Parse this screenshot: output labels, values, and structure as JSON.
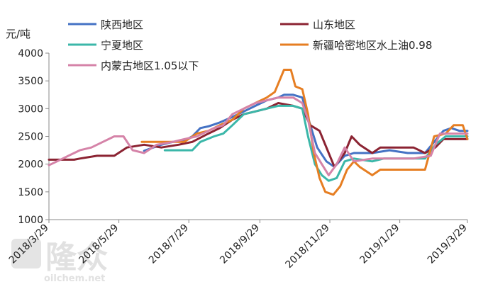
{
  "chart_data": {
    "type": "line",
    "ylabel": "元/吨",
    "ylim": [
      1000,
      4000
    ],
    "yticks": [
      "1000",
      "1500",
      "2000",
      "2500",
      "3000",
      "3500",
      "4000"
    ],
    "xlim": [
      "2018-03-29",
      "2019-03-29"
    ],
    "xticks": [
      "2018/3/29",
      "2018/5/29",
      "2018/7/29",
      "2018/9/29",
      "2018/11/29",
      "2019/1/29",
      "2019/3/29"
    ],
    "grid": false,
    "legend": "top",
    "series": [
      {
        "name": "陕西地区",
        "color": "#4472C4",
        "points": [
          [
            "2018-06-20",
            2240
          ],
          [
            "2018-06-28",
            2300
          ],
          [
            "2018-07-05",
            2350
          ],
          [
            "2018-07-15",
            2400
          ],
          [
            "2018-07-25",
            2420
          ],
          [
            "2018-08-01",
            2500
          ],
          [
            "2018-08-08",
            2650
          ],
          [
            "2018-08-15",
            2680
          ],
          [
            "2018-08-25",
            2750
          ],
          [
            "2018-09-05",
            2850
          ],
          [
            "2018-09-15",
            2950
          ],
          [
            "2018-09-25",
            3050
          ],
          [
            "2018-10-05",
            3150
          ],
          [
            "2018-10-15",
            3200
          ],
          [
            "2018-10-20",
            3250
          ],
          [
            "2018-10-28",
            3250
          ],
          [
            "2018-11-05",
            3200
          ],
          [
            "2018-11-12",
            2700
          ],
          [
            "2018-11-18",
            2300
          ],
          [
            "2018-11-26",
            2050
          ],
          [
            "2018-12-03",
            1950
          ],
          [
            "2018-12-12",
            2150
          ],
          [
            "2018-12-20",
            2200
          ],
          [
            "2019-01-05",
            2200
          ],
          [
            "2019-01-20",
            2250
          ],
          [
            "2019-02-05",
            2200
          ],
          [
            "2019-02-20",
            2200
          ],
          [
            "2019-02-28",
            2400
          ],
          [
            "2019-03-08",
            2600
          ],
          [
            "2019-03-15",
            2650
          ],
          [
            "2019-03-22",
            2600
          ],
          [
            "2019-03-29",
            2600
          ]
        ]
      },
      {
        "name": "山东地区",
        "color": "#8B2332",
        "points": [
          [
            "2018-03-29",
            2080
          ],
          [
            "2018-04-20",
            2080
          ],
          [
            "2018-04-25",
            2100
          ],
          [
            "2018-05-10",
            2150
          ],
          [
            "2018-05-25",
            2150
          ],
          [
            "2018-06-05",
            2300
          ],
          [
            "2018-06-20",
            2350
          ],
          [
            "2018-07-05",
            2300
          ],
          [
            "2018-07-20",
            2350
          ],
          [
            "2018-08-01",
            2400
          ],
          [
            "2018-08-15",
            2550
          ],
          [
            "2018-08-25",
            2650
          ],
          [
            "2018-09-05",
            2800
          ],
          [
            "2018-09-15",
            2900
          ],
          [
            "2018-09-25",
            2950
          ],
          [
            "2018-10-05",
            3000
          ],
          [
            "2018-10-15",
            3100
          ],
          [
            "2018-10-28",
            3050
          ],
          [
            "2018-11-05",
            3000
          ],
          [
            "2018-11-12",
            2700
          ],
          [
            "2018-11-20",
            2600
          ],
          [
            "2018-11-28",
            2200
          ],
          [
            "2018-12-03",
            1950
          ],
          [
            "2018-12-12",
            2200
          ],
          [
            "2018-12-18",
            2500
          ],
          [
            "2018-12-25",
            2350
          ],
          [
            "2019-01-05",
            2200
          ],
          [
            "2019-01-12",
            2300
          ],
          [
            "2019-01-25",
            2300
          ],
          [
            "2019-02-10",
            2300
          ],
          [
            "2019-02-20",
            2200
          ],
          [
            "2019-03-01",
            2300
          ],
          [
            "2019-03-08",
            2450
          ],
          [
            "2019-03-20",
            2450
          ],
          [
            "2019-03-29",
            2450
          ]
        ]
      },
      {
        "name": "宁夏地区",
        "color": "#3BB7A9",
        "points": [
          [
            "2018-07-08",
            2250
          ],
          [
            "2018-08-01",
            2250
          ],
          [
            "2018-08-08",
            2400
          ],
          [
            "2018-08-20",
            2500
          ],
          [
            "2018-08-28",
            2550
          ],
          [
            "2018-09-05",
            2700
          ],
          [
            "2018-09-15",
            2900
          ],
          [
            "2018-09-25",
            2950
          ],
          [
            "2018-10-05",
            3000
          ],
          [
            "2018-10-15",
            3050
          ],
          [
            "2018-10-28",
            3050
          ],
          [
            "2018-11-05",
            3000
          ],
          [
            "2018-11-10",
            2500
          ],
          [
            "2018-11-16",
            2000
          ],
          [
            "2018-11-22",
            1800
          ],
          [
            "2018-11-28",
            1700
          ],
          [
            "2018-12-05",
            1750
          ],
          [
            "2018-12-12",
            2050
          ],
          [
            "2018-12-20",
            2100
          ],
          [
            "2019-01-05",
            2050
          ],
          [
            "2019-01-15",
            2100
          ],
          [
            "2019-02-01",
            2100
          ],
          [
            "2019-02-20",
            2100
          ],
          [
            "2019-03-01",
            2350
          ],
          [
            "2019-03-10",
            2500
          ],
          [
            "2019-03-29",
            2500
          ]
        ]
      },
      {
        "name": "新疆哈密地区水上油0.98",
        "color": "#E67E22",
        "points": [
          [
            "2018-06-18",
            2400
          ],
          [
            "2018-07-10",
            2400
          ],
          [
            "2018-07-25",
            2400
          ],
          [
            "2018-08-05",
            2550
          ],
          [
            "2018-08-15",
            2600
          ],
          [
            "2018-08-25",
            2700
          ],
          [
            "2018-09-05",
            2800
          ],
          [
            "2018-09-15",
            3000
          ],
          [
            "2018-09-25",
            3100
          ],
          [
            "2018-10-05",
            3200
          ],
          [
            "2018-10-12",
            3300
          ],
          [
            "2018-10-16",
            3500
          ],
          [
            "2018-10-20",
            3700
          ],
          [
            "2018-10-26",
            3700
          ],
          [
            "2018-10-30",
            3400
          ],
          [
            "2018-11-05",
            3350
          ],
          [
            "2018-11-10",
            2900
          ],
          [
            "2018-11-15",
            2200
          ],
          [
            "2018-11-20",
            1750
          ],
          [
            "2018-11-25",
            1500
          ],
          [
            "2018-12-02",
            1450
          ],
          [
            "2018-12-08",
            1600
          ],
          [
            "2018-12-14",
            1900
          ],
          [
            "2018-12-20",
            2050
          ],
          [
            "2018-12-25",
            1950
          ],
          [
            "2019-01-05",
            1800
          ],
          [
            "2019-01-12",
            1900
          ],
          [
            "2019-01-25",
            1900
          ],
          [
            "2019-02-10",
            1900
          ],
          [
            "2019-02-20",
            1900
          ],
          [
            "2019-02-28",
            2500
          ],
          [
            "2019-03-10",
            2550
          ],
          [
            "2019-03-17",
            2700
          ],
          [
            "2019-03-25",
            2700
          ],
          [
            "2019-03-29",
            2450
          ]
        ]
      },
      {
        "name": "内蒙古地区1.05以下",
        "color": "#D583A8",
        "points": [
          [
            "2018-03-29",
            1980
          ],
          [
            "2018-04-05",
            2050
          ],
          [
            "2018-04-15",
            2150
          ],
          [
            "2018-04-25",
            2250
          ],
          [
            "2018-05-05",
            2300
          ],
          [
            "2018-05-15",
            2400
          ],
          [
            "2018-05-25",
            2500
          ],
          [
            "2018-06-02",
            2500
          ],
          [
            "2018-06-10",
            2250
          ],
          [
            "2018-06-20",
            2200
          ],
          [
            "2018-07-01",
            2350
          ],
          [
            "2018-07-15",
            2400
          ],
          [
            "2018-07-25",
            2450
          ],
          [
            "2018-08-05",
            2500
          ],
          [
            "2018-08-20",
            2650
          ],
          [
            "2018-08-28",
            2700
          ],
          [
            "2018-09-05",
            2900
          ],
          [
            "2018-09-15",
            3000
          ],
          [
            "2018-09-25",
            3100
          ],
          [
            "2018-10-05",
            3150
          ],
          [
            "2018-10-15",
            3200
          ],
          [
            "2018-10-28",
            3200
          ],
          [
            "2018-11-05",
            3100
          ],
          [
            "2018-11-10",
            2800
          ],
          [
            "2018-11-16",
            2200
          ],
          [
            "2018-11-22",
            2000
          ],
          [
            "2018-11-28",
            1800
          ],
          [
            "2018-12-05",
            2000
          ],
          [
            "2018-12-12",
            2300
          ],
          [
            "2018-12-20",
            2050
          ],
          [
            "2019-01-05",
            2100
          ],
          [
            "2019-01-20",
            2100
          ],
          [
            "2019-02-10",
            2100
          ],
          [
            "2019-02-25",
            2150
          ],
          [
            "2019-03-05",
            2550
          ],
          [
            "2019-03-29",
            2550
          ]
        ]
      }
    ]
  },
  "watermark": {
    "brand_text": "隆众",
    "site_text": "oilchem.net"
  }
}
